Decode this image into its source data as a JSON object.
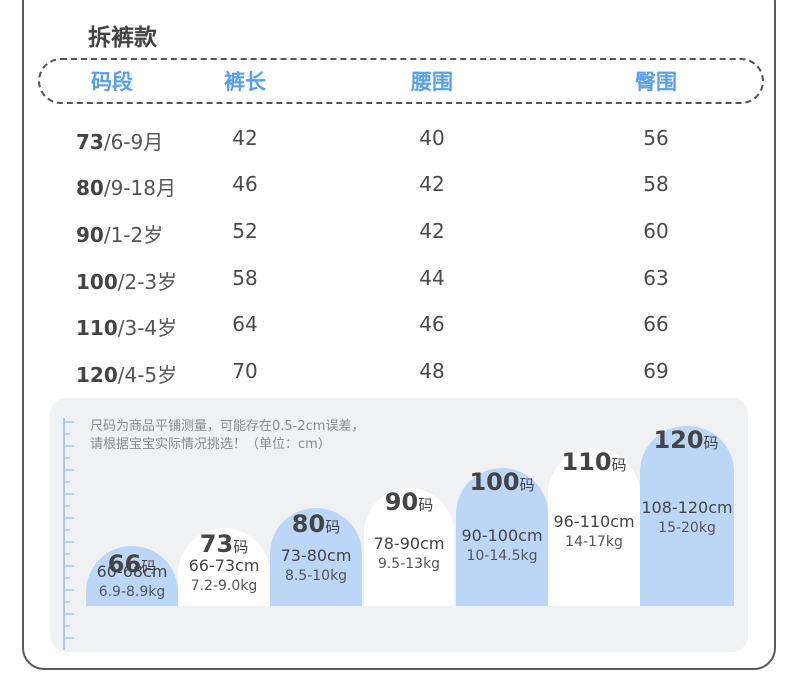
{
  "title": "拆裤款",
  "table": {
    "headers": [
      "码段",
      "裤长",
      "腰围",
      "臀围"
    ],
    "rows": [
      {
        "size": "73",
        "age": "/6-9月",
        "length": "42",
        "waist": "40",
        "hip": "56"
      },
      {
        "size": "80",
        "age": "/9-18月",
        "length": "46",
        "waist": "42",
        "hip": "58"
      },
      {
        "size": "90",
        "age": "/1-2岁",
        "length": "52",
        "waist": "42",
        "hip": "60"
      },
      {
        "size": "100",
        "age": "/2-3岁",
        "length": "58",
        "waist": "44",
        "hip": "63"
      },
      {
        "size": "110",
        "age": "/3-4岁",
        "length": "64",
        "waist": "46",
        "hip": "66"
      },
      {
        "size": "120",
        "age": "/4-5岁",
        "length": "70",
        "waist": "48",
        "hip": "69"
      }
    ]
  },
  "note": {
    "line1": "尺码为商品平铺测量，可能存在0.5-2cm误差，",
    "line2": "请根据宝宝实际情况挑选！（单位：cm）"
  },
  "guide": {
    "unit": "码",
    "sizes": [
      {
        "size": "66",
        "height": "60-68cm",
        "weight": "6.9-8.9kg"
      },
      {
        "size": "73",
        "height": "66-73cm",
        "weight": "7.2-9.0kg"
      },
      {
        "size": "80",
        "height": "73-80cm",
        "weight": "8.5-10kg"
      },
      {
        "size": "90",
        "height": "78-90cm",
        "weight": "9.5-13kg"
      },
      {
        "size": "100",
        "height": "90-100cm",
        "weight": "10-14.5kg"
      },
      {
        "size": "110",
        "height": "96-110cm",
        "weight": "14-17kg"
      },
      {
        "size": "120",
        "height": "108-120cm",
        "weight": "15-20kg"
      }
    ]
  },
  "colors": {
    "accent_blue": "#5aa0e8",
    "block_blue": "#bcd6f7",
    "block_white": "#ffffff",
    "panel": "#f0f1f3"
  }
}
